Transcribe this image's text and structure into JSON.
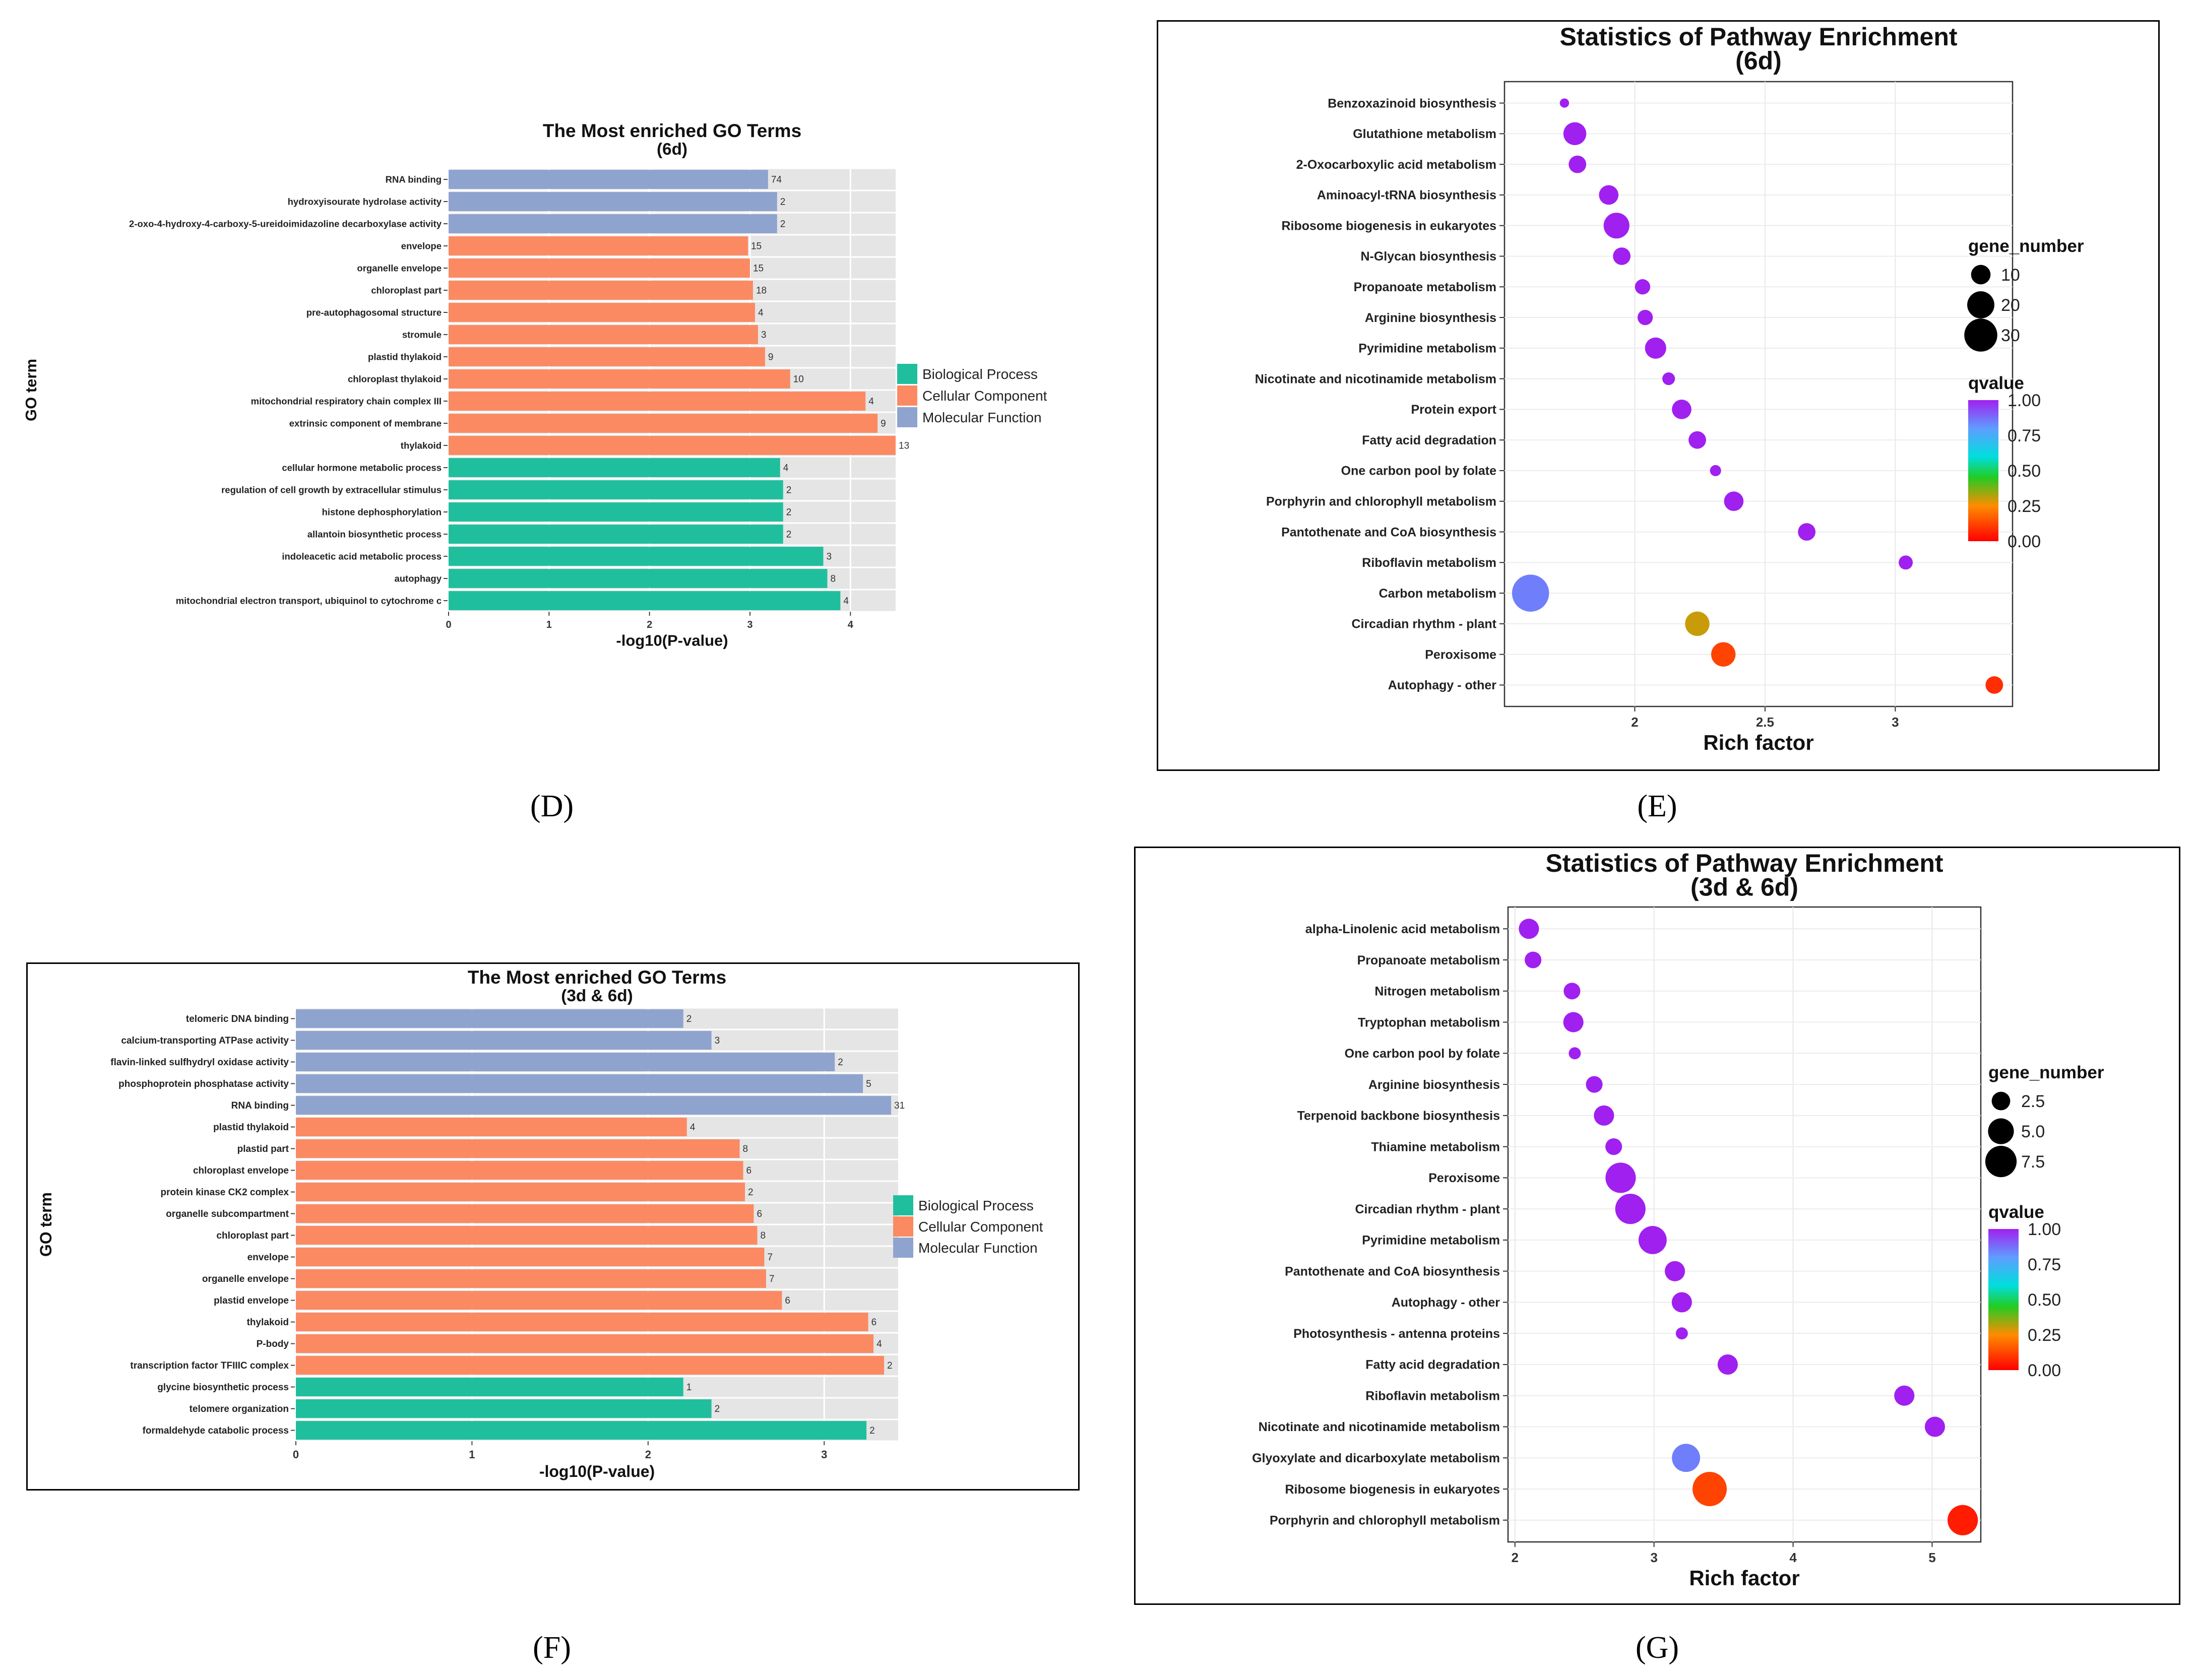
{
  "panel_labels": {
    "d": "(D)",
    "e": "(E)",
    "f": "(F)",
    "g": "(G)"
  },
  "chart_data": [
    {
      "id": "D",
      "type": "bar",
      "orientation": "horizontal",
      "title": "The Most enriched GO Terms",
      "subtitle": "(6d)",
      "xlabel": "-log10(P-value)",
      "ylabel": "GO term",
      "xlim": [
        0,
        4.45
      ],
      "xticks": [
        0,
        1,
        2,
        3,
        4
      ],
      "legend": [
        {
          "name": "Biological Process",
          "color": "#1fbf9e"
        },
        {
          "name": "Cellular Component",
          "color": "#fb8a62"
        },
        {
          "name": "Molecular Function",
          "color": "#8fa3cf"
        }
      ],
      "legend_position": "right",
      "bars": [
        {
          "term": "RNA binding",
          "value": 3.18,
          "count": "74",
          "category": "Molecular Function"
        },
        {
          "term": "hydroxyisourate hydrolase activity",
          "value": 3.27,
          "count": "2",
          "category": "Molecular Function"
        },
        {
          "term": "2-oxo-4-hydroxy-4-carboxy-5-ureidoimidazoline decarboxylase activity",
          "value": 3.27,
          "count": "2",
          "category": "Molecular Function"
        },
        {
          "term": "envelope",
          "value": 2.98,
          "count": "15",
          "category": "Cellular Component"
        },
        {
          "term": "organelle envelope",
          "value": 3.0,
          "count": "15",
          "category": "Cellular Component"
        },
        {
          "term": "chloroplast part",
          "value": 3.03,
          "count": "18",
          "category": "Cellular Component"
        },
        {
          "term": "pre-autophagosomal structure",
          "value": 3.05,
          "count": "4",
          "category": "Cellular Component"
        },
        {
          "term": "stromule",
          "value": 3.08,
          "count": "3",
          "category": "Cellular Component"
        },
        {
          "term": "plastid thylakoid",
          "value": 3.15,
          "count": "9",
          "category": "Cellular Component"
        },
        {
          "term": "chloroplast thylakoid",
          "value": 3.4,
          "count": "10",
          "category": "Cellular Component"
        },
        {
          "term": "mitochondrial respiratory chain complex III",
          "value": 4.15,
          "count": "4",
          "category": "Cellular Component"
        },
        {
          "term": "extrinsic component of membrane",
          "value": 4.27,
          "count": "9",
          "category": "Cellular Component"
        },
        {
          "term": "thylakoid",
          "value": 4.45,
          "count": "13",
          "category": "Cellular Component"
        },
        {
          "term": "cellular hormone metabolic process",
          "value": 3.3,
          "count": "4",
          "category": "Biological Process"
        },
        {
          "term": "regulation of cell growth by extracellular stimulus",
          "value": 3.33,
          "count": "2",
          "category": "Biological Process"
        },
        {
          "term": "histone dephosphorylation",
          "value": 3.33,
          "count": "2",
          "category": "Biological Process"
        },
        {
          "term": "allantoin biosynthetic process",
          "value": 3.33,
          "count": "2",
          "category": "Biological Process"
        },
        {
          "term": "indoleacetic acid metabolic process",
          "value": 3.73,
          "count": "3",
          "category": "Biological Process"
        },
        {
          "term": "autophagy",
          "value": 3.77,
          "count": "8",
          "category": "Biological Process"
        },
        {
          "term": "mitochondrial electron transport, ubiquinol to cytochrome c",
          "value": 3.9,
          "count": "4",
          "category": "Biological Process"
        }
      ]
    },
    {
      "id": "E",
      "type": "scatter",
      "title": "Statistics of Pathway Enrichment",
      "subtitle": "(6d)",
      "xlabel": "Rich factor",
      "xlim": [
        1.5,
        3.45
      ],
      "xticks": [
        2.0,
        2.5,
        3.0
      ],
      "size_legend": {
        "title": "gene_number",
        "values": [
          10,
          20,
          30
        ]
      },
      "color_legend": {
        "title": "qvalue",
        "ticks": [
          "1.00",
          "0.75",
          "0.50",
          "0.25",
          "0.00"
        ]
      },
      "legend_position": "right",
      "points": [
        {
          "pathway": "Benzoxazinoid biosynthesis",
          "x": 1.73,
          "genes": 2,
          "q": 1.0
        },
        {
          "pathway": "Glutathione metabolism",
          "x": 1.77,
          "genes": 14,
          "q": 1.0
        },
        {
          "pathway": "2-Oxocarboxylic acid metabolism",
          "x": 1.78,
          "genes": 8,
          "q": 1.0
        },
        {
          "pathway": "Aminoacyl-tRNA biosynthesis",
          "x": 1.9,
          "genes": 10,
          "q": 1.0
        },
        {
          "pathway": "Ribosome biogenesis in eukaryotes",
          "x": 1.93,
          "genes": 18,
          "q": 1.0
        },
        {
          "pathway": "N-Glycan biosynthesis",
          "x": 1.95,
          "genes": 8,
          "q": 1.0
        },
        {
          "pathway": "Propanoate metabolism",
          "x": 2.03,
          "genes": 6,
          "q": 1.0
        },
        {
          "pathway": "Arginine biosynthesis",
          "x": 2.04,
          "genes": 6,
          "q": 1.0
        },
        {
          "pathway": "Pyrimidine metabolism",
          "x": 2.08,
          "genes": 12,
          "q": 1.0
        },
        {
          "pathway": "Nicotinate and nicotinamide metabolism",
          "x": 2.13,
          "genes": 4,
          "q": 1.0
        },
        {
          "pathway": "Protein export",
          "x": 2.18,
          "genes": 10,
          "q": 1.0
        },
        {
          "pathway": "Fatty acid degradation",
          "x": 2.24,
          "genes": 8,
          "q": 1.0
        },
        {
          "pathway": "One carbon pool by folate",
          "x": 2.31,
          "genes": 3,
          "q": 1.0
        },
        {
          "pathway": "Porphyrin and chlorophyll metabolism",
          "x": 2.38,
          "genes": 10,
          "q": 1.0
        },
        {
          "pathway": "Pantothenate and CoA biosynthesis",
          "x": 2.66,
          "genes": 8,
          "q": 1.0
        },
        {
          "pathway": "Riboflavin metabolism",
          "x": 3.04,
          "genes": 5,
          "q": 1.0
        },
        {
          "pathway": "Carbon metabolism",
          "x": 1.6,
          "genes": 38,
          "q": 0.85
        },
        {
          "pathway": "Circadian rhythm - plant",
          "x": 2.24,
          "genes": 16,
          "q": 0.3
        },
        {
          "pathway": "Peroxisome",
          "x": 2.34,
          "genes": 16,
          "q": 0.12
        },
        {
          "pathway": "Autophagy - other",
          "x": 3.38,
          "genes": 8,
          "q": 0.08
        }
      ]
    },
    {
      "id": "F",
      "type": "bar",
      "orientation": "horizontal",
      "title": "The Most enriched GO Terms",
      "subtitle": "(3d & 6d)",
      "xlabel": "-log10(P-value)",
      "ylabel": "GO term",
      "xlim": [
        0,
        3.42
      ],
      "xticks": [
        0,
        1,
        2,
        3
      ],
      "legend": [
        {
          "name": "Biological Process",
          "color": "#1fbf9e"
        },
        {
          "name": "Cellular Component",
          "color": "#fb8a62"
        },
        {
          "name": "Molecular Function",
          "color": "#8fa3cf"
        }
      ],
      "legend_position": "right",
      "bars": [
        {
          "term": "telomeric DNA binding",
          "value": 2.2,
          "count": "2",
          "category": "Molecular Function"
        },
        {
          "term": "calcium-transporting ATPase activity",
          "value": 2.36,
          "count": "3",
          "category": "Molecular Function"
        },
        {
          "term": "flavin-linked sulfhydryl oxidase activity",
          "value": 3.06,
          "count": "2",
          "category": "Molecular Function"
        },
        {
          "term": "phosphoprotein phosphatase activity",
          "value": 3.22,
          "count": "5",
          "category": "Molecular Function"
        },
        {
          "term": "RNA binding",
          "value": 3.38,
          "count": "31",
          "category": "Molecular Function"
        },
        {
          "term": "plastid thylakoid",
          "value": 2.22,
          "count": "4",
          "category": "Cellular Component"
        },
        {
          "term": "plastid part",
          "value": 2.52,
          "count": "8",
          "category": "Cellular Component"
        },
        {
          "term": "chloroplast envelope",
          "value": 2.54,
          "count": "6",
          "category": "Cellular Component"
        },
        {
          "term": "protein kinase CK2 complex",
          "value": 2.55,
          "count": "2",
          "category": "Cellular Component"
        },
        {
          "term": "organelle subcompartment",
          "value": 2.6,
          "count": "6",
          "category": "Cellular Component"
        },
        {
          "term": "chloroplast part",
          "value": 2.62,
          "count": "8",
          "category": "Cellular Component"
        },
        {
          "term": "envelope",
          "value": 2.66,
          "count": "7",
          "category": "Cellular Component"
        },
        {
          "term": "organelle envelope",
          "value": 2.67,
          "count": "7",
          "category": "Cellular Component"
        },
        {
          "term": "plastid envelope",
          "value": 2.76,
          "count": "6",
          "category": "Cellular Component"
        },
        {
          "term": "thylakoid",
          "value": 3.25,
          "count": "6",
          "category": "Cellular Component"
        },
        {
          "term": "P-body",
          "value": 3.28,
          "count": "4",
          "category": "Cellular Component"
        },
        {
          "term": "transcription factor TFIIIC complex",
          "value": 3.34,
          "count": "2",
          "category": "Cellular Component"
        },
        {
          "term": "glycine biosynthetic process",
          "value": 2.2,
          "count": "1",
          "category": "Biological Process"
        },
        {
          "term": "telomere organization",
          "value": 2.36,
          "count": "2",
          "category": "Biological Process"
        },
        {
          "term": "formaldehyde catabolic process",
          "value": 3.24,
          "count": "2",
          "category": "Biological Process"
        }
      ]
    },
    {
      "id": "G",
      "type": "scatter",
      "title": "Statistics of Pathway Enrichment",
      "subtitle": "(3d & 6d)",
      "xlabel": "Rich factor",
      "xlim": [
        1.95,
        5.35
      ],
      "xticks": [
        2,
        3,
        4,
        5
      ],
      "size_legend": {
        "title": "gene_number",
        "values": [
          "2.5",
          "5.0",
          "7.5"
        ]
      },
      "color_legend": {
        "title": "qvalue",
        "ticks": [
          "1.00",
          "0.75",
          "0.50",
          "0.25",
          "0.00"
        ]
      },
      "legend_position": "right",
      "points": [
        {
          "pathway": "alpha-Linolenic acid metabolism",
          "x": 2.1,
          "genes": 3,
          "q": 1.0
        },
        {
          "pathway": "Propanoate metabolism",
          "x": 2.13,
          "genes": 2,
          "q": 1.0
        },
        {
          "pathway": "Nitrogen metabolism",
          "x": 2.41,
          "genes": 2,
          "q": 1.0
        },
        {
          "pathway": "Tryptophan metabolism",
          "x": 2.42,
          "genes": 3,
          "q": 1.0
        },
        {
          "pathway": "One carbon pool by folate",
          "x": 2.43,
          "genes": 1,
          "q": 1.0
        },
        {
          "pathway": "Arginine biosynthesis",
          "x": 2.57,
          "genes": 2,
          "q": 1.0
        },
        {
          "pathway": "Terpenoid backbone biosynthesis",
          "x": 2.64,
          "genes": 3,
          "q": 1.0
        },
        {
          "pathway": "Thiamine metabolism",
          "x": 2.71,
          "genes": 2,
          "q": 1.0
        },
        {
          "pathway": "Peroxisome",
          "x": 2.76,
          "genes": 7,
          "q": 1.0
        },
        {
          "pathway": "Circadian rhythm - plant",
          "x": 2.83,
          "genes": 7,
          "q": 1.0
        },
        {
          "pathway": "Pyrimidine metabolism",
          "x": 2.99,
          "genes": 6,
          "q": 1.0
        },
        {
          "pathway": "Pantothenate and CoA biosynthesis",
          "x": 3.15,
          "genes": 3,
          "q": 1.0
        },
        {
          "pathway": "Autophagy - other",
          "x": 3.2,
          "genes": 3,
          "q": 1.0
        },
        {
          "pathway": "Photosynthesis - antenna proteins",
          "x": 3.2,
          "genes": 1,
          "q": 1.0
        },
        {
          "pathway": "Fatty acid degradation",
          "x": 3.53,
          "genes": 3,
          "q": 1.0
        },
        {
          "pathway": "Riboflavin metabolism",
          "x": 4.8,
          "genes": 3,
          "q": 1.0
        },
        {
          "pathway": "Nicotinate and nicotinamide metabolism",
          "x": 5.02,
          "genes": 3,
          "q": 1.0
        },
        {
          "pathway": "Glyoxylate and dicarboxylate metabolism",
          "x": 3.23,
          "genes": 6,
          "q": 0.85
        },
        {
          "pathway": "Ribosome biogenesis in eukaryotes",
          "x": 3.4,
          "genes": 9,
          "q": 0.12
        },
        {
          "pathway": "Porphyrin and chlorophyll metabolism",
          "x": 5.22,
          "genes": 7,
          "q": 0.05
        }
      ]
    }
  ]
}
